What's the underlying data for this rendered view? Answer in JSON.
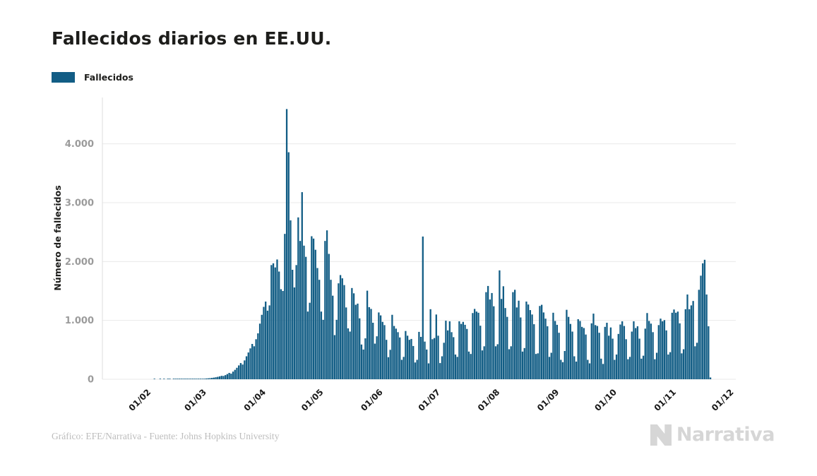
{
  "title": "Fallecidos diarios en EE.UU.",
  "legend": {
    "label": "Fallecidos",
    "swatch_color": "#125d85"
  },
  "footer": {
    "credit": "Gráfico: EFE/Narrativa - Fuente: Johns Hopkins University",
    "brand": "Narrativa"
  },
  "chart_data": {
    "type": "bar",
    "title": "Fallecidos diarios en EE.UU.",
    "series_name": "Fallecidos",
    "ylabel": "Número de fallecidos",
    "xlabel": "",
    "ylim": [
      0,
      4770
    ],
    "grid": true,
    "legend_position": "top-left",
    "bar_color": "#125d85",
    "y_ticks": [
      {
        "value": 0,
        "label": "0"
      },
      {
        "value": 1000,
        "label": "1.000"
      },
      {
        "value": 2000,
        "label": "2.000"
      },
      {
        "value": 3000,
        "label": "3.000"
      },
      {
        "value": 4000,
        "label": "4.000"
      }
    ],
    "x_ticks": [
      {
        "label": "01/02",
        "day": 10
      },
      {
        "label": "01/03",
        "day": 39
      },
      {
        "label": "01/04",
        "day": 70
      },
      {
        "label": "01/05",
        "day": 100
      },
      {
        "label": "01/06",
        "day": 131
      },
      {
        "label": "01/07",
        "day": 161
      },
      {
        "label": "01/08",
        "day": 192
      },
      {
        "label": "01/09",
        "day": 223
      },
      {
        "label": "01/10",
        "day": 253
      },
      {
        "label": "01/11",
        "day": 284
      },
      {
        "label": "01/12",
        "day": 314
      }
    ],
    "start_date": "22/01/2020",
    "frequency": "daily",
    "values": [
      0,
      0,
      0,
      0,
      0,
      0,
      0,
      0,
      0,
      0,
      0,
      0,
      0,
      0,
      0,
      1,
      0,
      0,
      1,
      0,
      1,
      0,
      2,
      1,
      0,
      1,
      1,
      2,
      1,
      2,
      2,
      3,
      2,
      3,
      4,
      4,
      5,
      6,
      8,
      6,
      8,
      10,
      13,
      16,
      19,
      23,
      28,
      34,
      41,
      49,
      58,
      56,
      70,
      88,
      108,
      95,
      130,
      160,
      195,
      235,
      275,
      250,
      320,
      390,
      455,
      525,
      600,
      560,
      680,
      780,
      945,
      1095,
      1230,
      1320,
      1165,
      1255,
      1940,
      1970,
      1900,
      2035,
      1830,
      1530,
      1500,
      2470,
      4591,
      3857,
      2700,
      1860,
      1560,
      1940,
      2750,
      2350,
      3179,
      2270,
      2080,
      1150,
      1300,
      2430,
      2390,
      2200,
      1890,
      1690,
      1150,
      1010,
      2350,
      2530,
      2130,
      1690,
      1420,
      750,
      1010,
      1630,
      1770,
      1715,
      1600,
      1220,
      865,
      810,
      1550,
      1460,
      1265,
      1285,
      1035,
      590,
      505,
      695,
      1505,
      1225,
      1195,
      960,
      605,
      730,
      1135,
      1085,
      975,
      920,
      670,
      375,
      500,
      1095,
      905,
      860,
      800,
      710,
      330,
      380,
      820,
      740,
      670,
      685,
      565,
      285,
      330,
      805,
      720,
      2425,
      640,
      505,
      270,
      1190,
      680,
      700,
      1100,
      740,
      275,
      390,
      620,
      995,
      830,
      985,
      800,
      715,
      420,
      380,
      985,
      940,
      975,
      925,
      855,
      470,
      430,
      1125,
      1195,
      1150,
      1130,
      910,
      490,
      560,
      1480,
      1585,
      1355,
      1465,
      1240,
      560,
      595,
      1850,
      1365,
      1580,
      1210,
      1060,
      510,
      560,
      1480,
      1520,
      1220,
      1335,
      1050,
      470,
      530,
      1320,
      1270,
      1175,
      1100,
      935,
      430,
      440,
      1245,
      1265,
      1135,
      1030,
      900,
      380,
      450,
      1130,
      990,
      925,
      790,
      330,
      290,
      480,
      1180,
      1060,
      940,
      810,
      390,
      300,
      1020,
      990,
      890,
      870,
      760,
      330,
      270,
      950,
      1115,
      920,
      905,
      790,
      350,
      260,
      890,
      960,
      740,
      880,
      690,
      330,
      420,
      770,
      930,
      985,
      905,
      680,
      340,
      380,
      810,
      985,
      870,
      900,
      690,
      350,
      400,
      860,
      1125,
      990,
      945,
      800,
      340,
      450,
      920,
      1030,
      985,
      1005,
      830,
      420,
      460,
      1130,
      1185,
      1130,
      1150,
      950,
      440,
      510,
      1190,
      1440,
      1190,
      1255,
      1330,
      560,
      620,
      1520,
      1760,
      1970,
      2030,
      1440,
      900,
      30
    ]
  },
  "colors": {
    "bar": "#125d85",
    "grid": "#e9e9e9",
    "axis_line": "#dedede",
    "y_tick_text": "#9b9b9b",
    "x_tick_text": "#1a1a1a",
    "title_text": "#1d1d1b",
    "footer_text": "#bdbdbd",
    "brand_text": "#d6d6d6"
  }
}
